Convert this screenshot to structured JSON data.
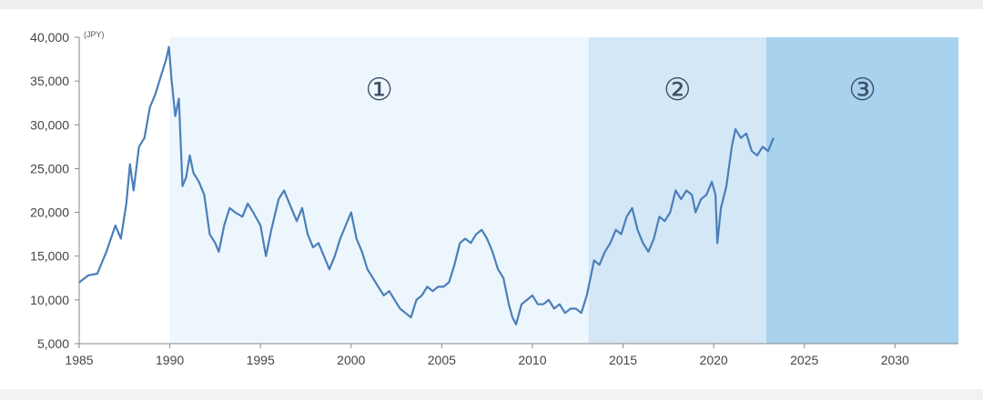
{
  "chart_data": {
    "type": "line",
    "title": "",
    "xlabel": "",
    "ylabel": "",
    "y_unit": "(JPY)",
    "xlim": [
      1985,
      2033.5
    ],
    "ylim": [
      5000,
      40000
    ],
    "x_ticks": [
      1985,
      1990,
      1995,
      2000,
      2005,
      2010,
      2015,
      2020,
      2025,
      2030
    ],
    "x_tick_labels": [
      "1985",
      "1990",
      "1995",
      "2000",
      "2005",
      "2010",
      "2015",
      "2020",
      "2025",
      "2030"
    ],
    "y_ticks": [
      5000,
      10000,
      15000,
      20000,
      25000,
      30000,
      35000,
      40000
    ],
    "y_tick_labels": [
      "5,000",
      "10,000",
      "15,000",
      "20,000",
      "25,000",
      "30,000",
      "35,000",
      "40,000"
    ],
    "grid": false,
    "legend": "none",
    "regions": [
      {
        "label": "①",
        "x_start": 1990,
        "x_end": 2013.1,
        "color": "#eef6fd"
      },
      {
        "label": "②",
        "x_start": 2013.1,
        "x_end": 2022.9,
        "color": "#d3e7f6"
      },
      {
        "label": "③",
        "x_start": 2022.9,
        "x_end": 2033.5,
        "color": "#a8d2ee"
      }
    ],
    "series": [
      {
        "color": "#4a7fb9",
        "x": [
          1985.0,
          1985.5,
          1986.0,
          1986.5,
          1987.0,
          1987.3,
          1987.6,
          1987.8,
          1988.0,
          1988.3,
          1988.6,
          1988.9,
          1989.2,
          1989.5,
          1989.8,
          1989.95,
          1990.1,
          1990.3,
          1990.5,
          1990.7,
          1990.9,
          1991.1,
          1991.3,
          1991.6,
          1991.9,
          1992.2,
          1992.5,
          1992.7,
          1993.0,
          1993.3,
          1993.6,
          1994.0,
          1994.3,
          1994.6,
          1995.0,
          1995.3,
          1995.6,
          1996.0,
          1996.3,
          1996.6,
          1997.0,
          1997.3,
          1997.6,
          1997.9,
          1998.2,
          1998.5,
          1998.8,
          1999.1,
          1999.4,
          1999.7,
          2000.0,
          2000.3,
          2000.6,
          2000.9,
          2001.2,
          2001.5,
          2001.8,
          2002.1,
          2002.4,
          2002.7,
          2003.0,
          2003.3,
          2003.6,
          2003.9,
          2004.2,
          2004.5,
          2004.8,
          2005.1,
          2005.4,
          2005.7,
          2006.0,
          2006.3,
          2006.6,
          2006.9,
          2007.2,
          2007.5,
          2007.8,
          2008.1,
          2008.4,
          2008.7,
          2008.9,
          2009.1,
          2009.4,
          2009.7,
          2010.0,
          2010.3,
          2010.6,
          2010.9,
          2011.2,
          2011.5,
          2011.8,
          2012.1,
          2012.4,
          2012.7,
          2013.0,
          2013.2,
          2013.4,
          2013.7,
          2014.0,
          2014.3,
          2014.6,
          2014.9,
          2015.2,
          2015.5,
          2015.8,
          2016.1,
          2016.4,
          2016.7,
          2017.0,
          2017.3,
          2017.6,
          2017.9,
          2018.2,
          2018.5,
          2018.8,
          2019.0,
          2019.3,
          2019.6,
          2019.9,
          2020.1,
          2020.2,
          2020.4,
          2020.7,
          2021.0,
          2021.2,
          2021.5,
          2021.8,
          2022.1,
          2022.4,
          2022.7,
          2023.0,
          2023.3
        ],
        "y": [
          12000,
          12800,
          13000,
          15500,
          18500,
          17000,
          21000,
          25500,
          22500,
          27500,
          28500,
          32000,
          33500,
          35500,
          37500,
          38900,
          35000,
          31000,
          33000,
          23000,
          24000,
          26500,
          24500,
          23500,
          22000,
          17500,
          16500,
          15500,
          18500,
          20500,
          20000,
          19500,
          21000,
          20000,
          18500,
          15000,
          18000,
          21500,
          22500,
          21000,
          19000,
          20500,
          17500,
          16000,
          16500,
          15000,
          13500,
          15000,
          17000,
          18500,
          20000,
          17000,
          15500,
          13500,
          12500,
          11500,
          10500,
          11000,
          10000,
          9000,
          8500,
          8000,
          10000,
          10500,
          11500,
          11000,
          11500,
          11500,
          12000,
          14000,
          16500,
          17000,
          16500,
          17500,
          18000,
          17000,
          15500,
          13500,
          12500,
          9500,
          8000,
          7200,
          9500,
          10000,
          10500,
          9500,
          9500,
          10000,
          9000,
          9500,
          8500,
          9000,
          9000,
          8500,
          10500,
          12500,
          14500,
          14000,
          15500,
          16500,
          18000,
          17500,
          19500,
          20500,
          18000,
          16500,
          15500,
          17000,
          19500,
          19000,
          20000,
          22500,
          21500,
          22500,
          22000,
          20000,
          21500,
          22000,
          23500,
          22000,
          16500,
          20500,
          23000,
          27500,
          29500,
          28500,
          29000,
          27000,
          26500,
          27500,
          27000,
          28500
        ]
      }
    ]
  }
}
